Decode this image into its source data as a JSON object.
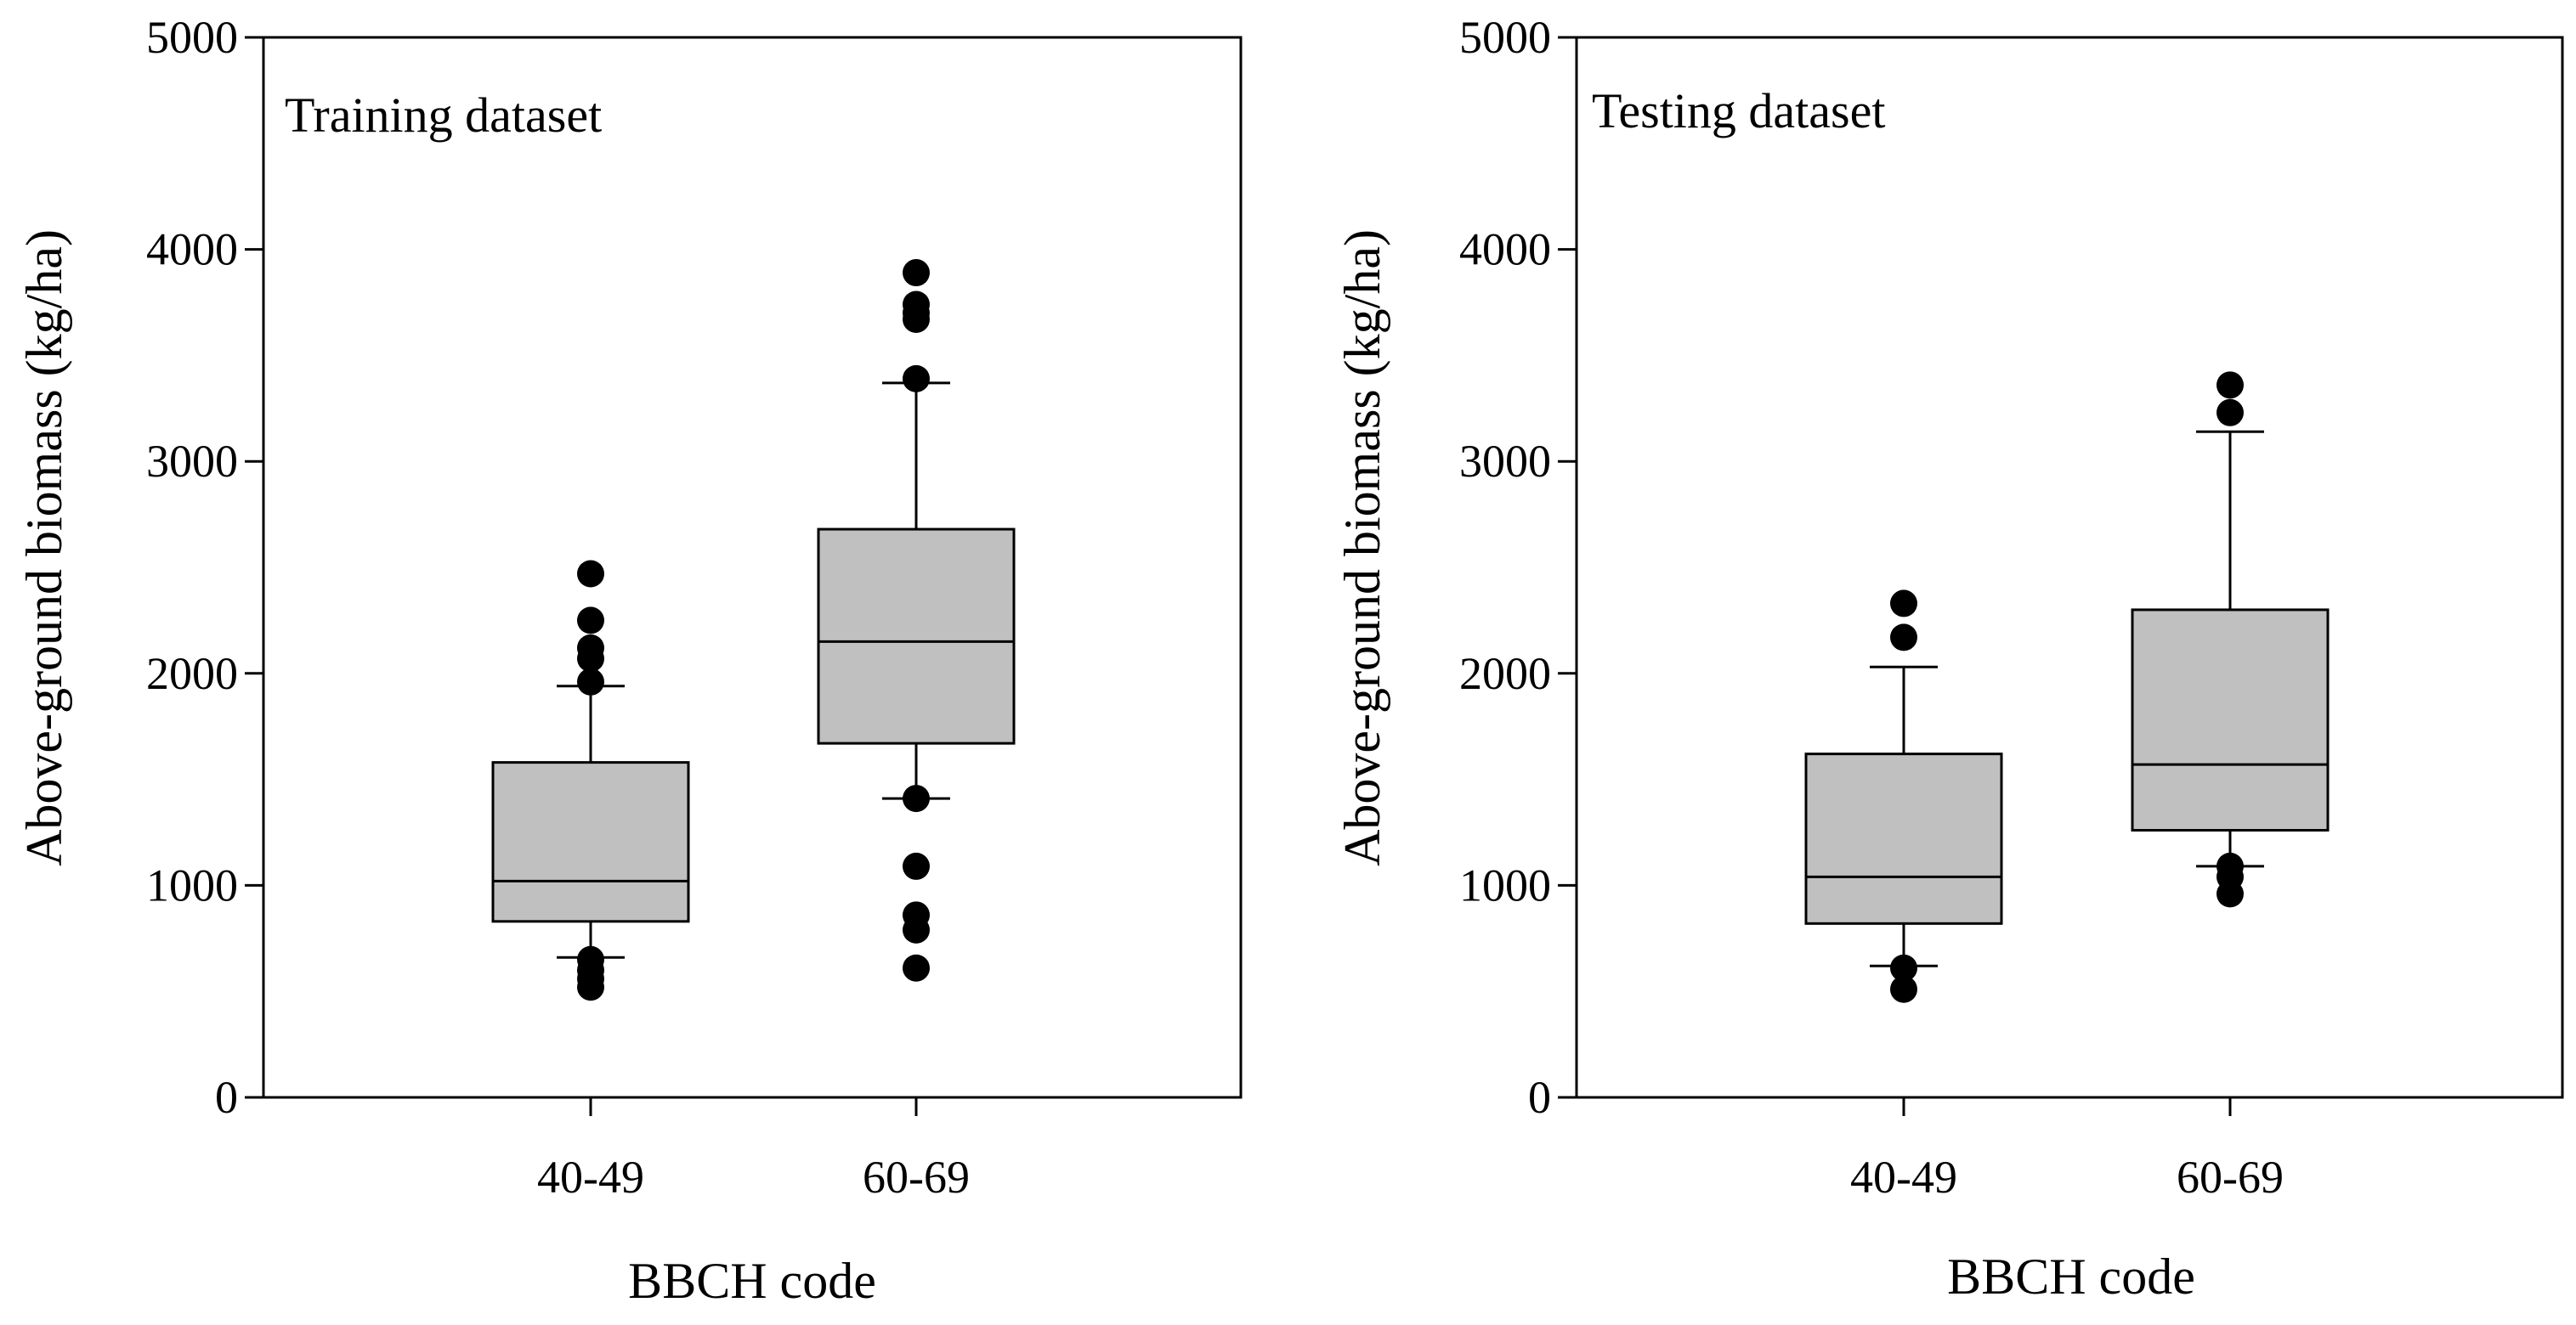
{
  "chart_data": [
    {
      "type": "box",
      "title": "Training dataset",
      "xlabel": "BBCH code",
      "ylabel": "Above-ground biomass (kg/ha)",
      "ylim": [
        0,
        5000
      ],
      "yticks": [
        0,
        1000,
        2000,
        3000,
        4000,
        5000
      ],
      "categories": [
        "40-49",
        "60-69"
      ],
      "box_color": "#c0c0c0",
      "boxes": [
        {
          "category": "40-49",
          "whisker_low": 660,
          "q1": 830,
          "median": 1020,
          "q3": 1580,
          "whisker_high": 1940,
          "outliers": [
            2470,
            2250,
            2120,
            2070,
            1960,
            650,
            600,
            560,
            520
          ]
        },
        {
          "category": "60-69",
          "whisker_low": 1410,
          "q1": 1670,
          "median": 2150,
          "q3": 2680,
          "whisker_high": 3370,
          "outliers": [
            3890,
            3740,
            3700,
            3670,
            3390,
            1410,
            1090,
            860,
            790,
            610
          ]
        }
      ]
    },
    {
      "type": "box",
      "title": "Testing dataset",
      "xlabel": "BBCH code",
      "ylabel": "Above-ground biomass (kg/ha)",
      "ylim": [
        0,
        5000
      ],
      "yticks": [
        0,
        1000,
        2000,
        3000,
        4000,
        5000
      ],
      "categories": [
        "40-49",
        "60-69"
      ],
      "box_color": "#c0c0c0",
      "boxes": [
        {
          "category": "40-49",
          "whisker_low": 620,
          "q1": 820,
          "median": 1040,
          "q3": 1620,
          "whisker_high": 2030,
          "outliers": [
            2330,
            2170,
            610,
            510
          ]
        },
        {
          "category": "60-69",
          "whisker_low": 1090,
          "q1": 1260,
          "median": 1570,
          "q3": 2300,
          "whisker_high": 3140,
          "outliers": [
            3360,
            3230,
            1090,
            1040,
            960
          ]
        }
      ]
    }
  ]
}
